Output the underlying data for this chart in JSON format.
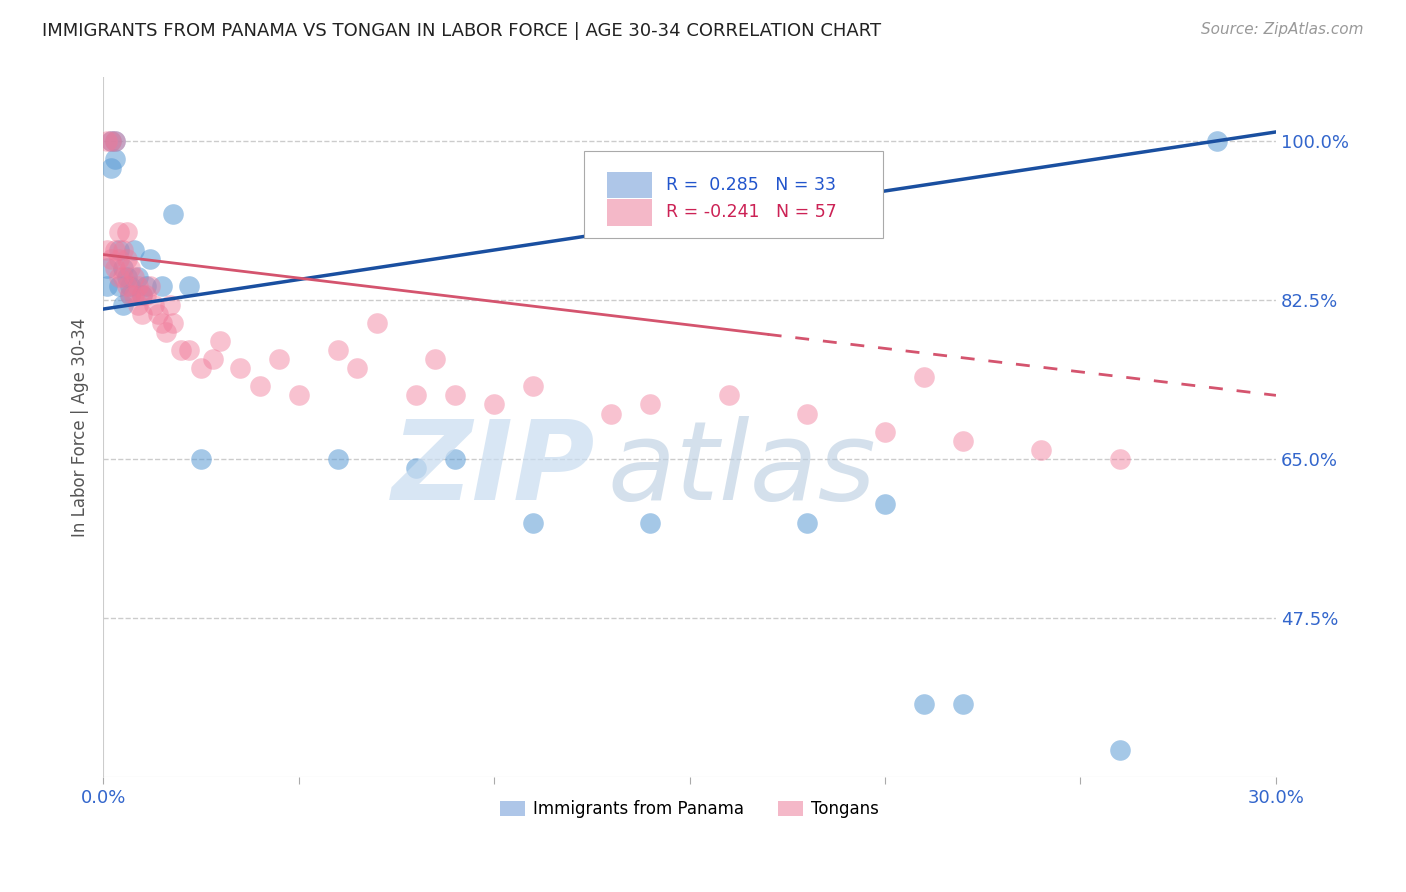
{
  "title": "IMMIGRANTS FROM PANAMA VS TONGAN IN LABOR FORCE | AGE 30-34 CORRELATION CHART",
  "source": "Source: ZipAtlas.com",
  "ylabel": "In Labor Force | Age 30-34",
  "xlim": [
    0.0,
    0.3
  ],
  "ylim": [
    0.3,
    1.07
  ],
  "grid_color": "#cccccc",
  "background_color": "#ffffff",
  "legend_color1": "#aec6e8",
  "legend_color2": "#f4b8c8",
  "blue_scatter_color": "#5b9bd5",
  "pink_scatter_color": "#f07898",
  "blue_line_color": "#1a4fa0",
  "pink_line_color": "#d4546e",
  "legend_label1": "Immigrants from Panama",
  "legend_label2": "Tongans",
  "right_yticks": [
    1.0,
    0.825,
    0.65,
    0.475
  ],
  "right_yticklabels": [
    "100.0%",
    "82.5%",
    "65.0%",
    "47.5%"
  ],
  "panama_x": [
    0.001,
    0.001,
    0.002,
    0.002,
    0.003,
    0.003,
    0.004,
    0.004,
    0.005,
    0.005,
    0.006,
    0.007,
    0.007,
    0.008,
    0.009,
    0.01,
    0.011,
    0.012,
    0.015,
    0.018,
    0.022,
    0.025,
    0.06,
    0.08,
    0.09,
    0.11,
    0.14,
    0.18,
    0.2,
    0.21,
    0.22,
    0.26,
    0.285
  ],
  "panama_y": [
    0.84,
    0.86,
    1.0,
    0.97,
    1.0,
    0.98,
    0.84,
    0.88,
    0.86,
    0.82,
    0.85,
    0.84,
    0.83,
    0.88,
    0.85,
    0.83,
    0.84,
    0.87,
    0.84,
    0.92,
    0.84,
    0.65,
    0.65,
    0.64,
    0.65,
    0.58,
    0.58,
    0.58,
    0.6,
    0.38,
    0.38,
    0.33,
    1.0
  ],
  "tongan_x": [
    0.001,
    0.001,
    0.002,
    0.002,
    0.003,
    0.003,
    0.003,
    0.004,
    0.004,
    0.004,
    0.005,
    0.005,
    0.006,
    0.006,
    0.006,
    0.007,
    0.007,
    0.008,
    0.008,
    0.009,
    0.009,
    0.01,
    0.01,
    0.011,
    0.012,
    0.013,
    0.014,
    0.015,
    0.016,
    0.017,
    0.018,
    0.02,
    0.022,
    0.025,
    0.028,
    0.03,
    0.035,
    0.04,
    0.045,
    0.05,
    0.06,
    0.065,
    0.07,
    0.08,
    0.085,
    0.09,
    0.1,
    0.11,
    0.13,
    0.14,
    0.16,
    0.18,
    0.2,
    0.21,
    0.22,
    0.24,
    0.26
  ],
  "tongan_y": [
    1.0,
    0.88,
    1.0,
    0.87,
    1.0,
    0.88,
    0.86,
    0.9,
    0.87,
    0.85,
    0.88,
    0.85,
    0.9,
    0.87,
    0.84,
    0.86,
    0.83,
    0.85,
    0.83,
    0.84,
    0.82,
    0.83,
    0.81,
    0.83,
    0.84,
    0.82,
    0.81,
    0.8,
    0.79,
    0.82,
    0.8,
    0.77,
    0.77,
    0.75,
    0.76,
    0.78,
    0.75,
    0.73,
    0.76,
    0.72,
    0.77,
    0.75,
    0.8,
    0.72,
    0.76,
    0.72,
    0.71,
    0.73,
    0.7,
    0.71,
    0.72,
    0.7,
    0.68,
    0.74,
    0.67,
    0.66,
    0.65
  ]
}
